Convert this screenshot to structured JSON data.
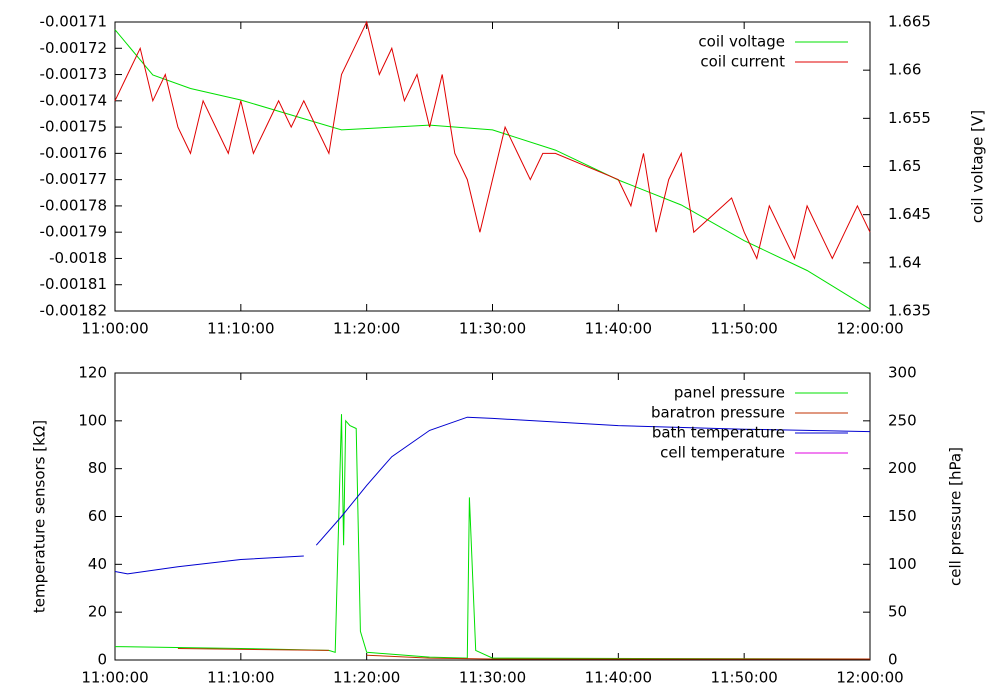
{
  "chart_data": [
    {
      "type": "line",
      "y2label": "coil voltage [V]",
      "xlim": [
        "11:00:00",
        "12:00:00"
      ],
      "xticks": [
        "11:00:00",
        "11:10:00",
        "11:20:00",
        "11:30:00",
        "11:40:00",
        "11:50:00",
        "12:00:00"
      ],
      "ylim": [
        -0.00182,
        -0.00171
      ],
      "yticks": [
        -0.00171,
        -0.00172,
        -0.00173,
        -0.00174,
        -0.00175,
        -0.00176,
        -0.00177,
        -0.00178,
        -0.00179,
        -0.0018,
        -0.00181,
        -0.00182
      ],
      "y2lim": [
        1.635,
        1.665
      ],
      "y2ticks": [
        1.635,
        1.64,
        1.645,
        1.65,
        1.655,
        1.66,
        1.665
      ],
      "legend": "upper right",
      "series": [
        {
          "name": "coil voltage",
          "color": "#00e000",
          "axis": "y2",
          "x": [
            "11:00:00",
            "11:03:00",
            "11:06:00",
            "11:10:00",
            "11:18:00",
            "11:25:00",
            "11:30:00",
            "11:35:00",
            "11:40:00",
            "11:45:00",
            "11:50:00",
            "11:55:00",
            "12:00:00"
          ],
          "values": [
            1.6642,
            1.6595,
            1.6581,
            1.6569,
            1.6538,
            1.6543,
            1.6538,
            1.6517,
            1.6486,
            1.646,
            1.6423,
            1.6392,
            1.6352
          ]
        },
        {
          "name": "coil current",
          "color": "#e00000",
          "axis": "y",
          "x": [
            "11:00:00",
            "11:01:00",
            "11:02:00",
            "11:03:00",
            "11:04:00",
            "11:05:00",
            "11:06:00",
            "11:07:00",
            "11:08:00",
            "11:09:00",
            "11:10:00",
            "11:11:00",
            "11:12:00",
            "11:13:00",
            "11:14:00",
            "11:15:00",
            "11:16:00",
            "11:17:00",
            "11:18:00",
            "11:19:00",
            "11:20:00",
            "11:21:00",
            "11:22:00",
            "11:23:00",
            "11:24:00",
            "11:25:00",
            "11:26:00",
            "11:27:00",
            "11:28:00",
            "11:29:00",
            "11:30:00",
            "11:31:00",
            "11:32:00",
            "11:33:00",
            "11:34:00",
            "11:35:00",
            "11:40:00",
            "11:41:00",
            "11:42:00",
            "11:43:00",
            "11:44:00",
            "11:45:00",
            "11:46:00",
            "11:49:00",
            "11:50:00",
            "11:51:00",
            "11:52:00",
            "11:53:00",
            "11:54:00",
            "11:55:00",
            "11:56:00",
            "11:57:00",
            "11:58:00",
            "11:59:00",
            "12:00:00"
          ],
          "values": [
            -0.00174,
            -0.00173,
            -0.00172,
            -0.00174,
            -0.00173,
            -0.00175,
            -0.00176,
            -0.00174,
            -0.00175,
            -0.00176,
            -0.00174,
            -0.00176,
            -0.00175,
            -0.00174,
            -0.00175,
            -0.00174,
            -0.00175,
            -0.00176,
            -0.00173,
            -0.00172,
            -0.00171,
            -0.00173,
            -0.00172,
            -0.00174,
            -0.00173,
            -0.00175,
            -0.00173,
            -0.00176,
            -0.00177,
            -0.00179,
            -0.00177,
            -0.00175,
            -0.00176,
            -0.00177,
            -0.00176,
            -0.00176,
            -0.00177,
            -0.00178,
            -0.00176,
            -0.00179,
            -0.00177,
            -0.00176,
            -0.00179,
            -0.001777,
            -0.00179,
            -0.0018,
            -0.00178,
            -0.00179,
            -0.0018,
            -0.00178,
            -0.00179,
            -0.0018,
            -0.00179,
            -0.00178,
            -0.00179
          ]
        }
      ]
    },
    {
      "type": "line",
      "ylabel": "temperature sensors [kΩ]",
      "y2label": "cell pressure [hPa]",
      "xlim": [
        "11:00:00",
        "12:00:00"
      ],
      "xticks": [
        "11:00:00",
        "11:10:00",
        "11:20:00",
        "11:30:00",
        "11:40:00",
        "11:50:00",
        "12:00:00"
      ],
      "ylim": [
        0,
        120
      ],
      "yticks": [
        0,
        20,
        40,
        60,
        80,
        100,
        120
      ],
      "y2lim": [
        0,
        300
      ],
      "y2ticks": [
        0,
        50,
        100,
        150,
        200,
        250,
        300
      ],
      "legend": "upper right",
      "series": [
        {
          "name": "panel pressure",
          "color": "#00e000",
          "axis": "y2",
          "x": [
            "11:00:00",
            "11:10:00",
            "11:17:00",
            "11:17:30",
            "11:18:00",
            "11:18:10",
            "11:18:20",
            "11:18:40",
            "11:19:10",
            "11:19:30",
            "11:20:00",
            "11:25:00",
            "11:28:00",
            "11:28:10",
            "11:28:40",
            "11:30:00",
            "12:00:00"
          ],
          "values": [
            14,
            12,
            10,
            8,
            257,
            120,
            250,
            245,
            242,
            30,
            8,
            3,
            2,
            170,
            10,
            2,
            1
          ]
        },
        {
          "name": "baratron pressure",
          "color": "#c03000",
          "axis": "y2",
          "x": [
            "11:05:00",
            "11:17:00",
            "11:17:30",
            "11:20:00",
            "11:25:00",
            "11:30:00",
            "12:00:00"
          ],
          "values": [
            12,
            10,
            null,
            5,
            2,
            1,
            1
          ]
        },
        {
          "name": "bath temperature",
          "color": "#0000d0",
          "axis": "y",
          "x": [
            "11:00:00",
            "11:01:00",
            "11:05:00",
            "11:10:00",
            "11:15:00",
            "11:15:30",
            "11:16:00",
            "11:18:00",
            "11:20:00",
            "11:22:00",
            "11:25:00",
            "11:28:00",
            "11:30:00",
            "11:40:00",
            "11:50:00",
            "12:00:00"
          ],
          "values": [
            37,
            36,
            39,
            42,
            43.5,
            null,
            48,
            60,
            73,
            85,
            96,
            101.5,
            101,
            98,
            96.5,
            95.5
          ]
        },
        {
          "name": "cell temperature",
          "color": "#e000e0",
          "axis": "y",
          "x": [],
          "values": []
        }
      ]
    }
  ]
}
